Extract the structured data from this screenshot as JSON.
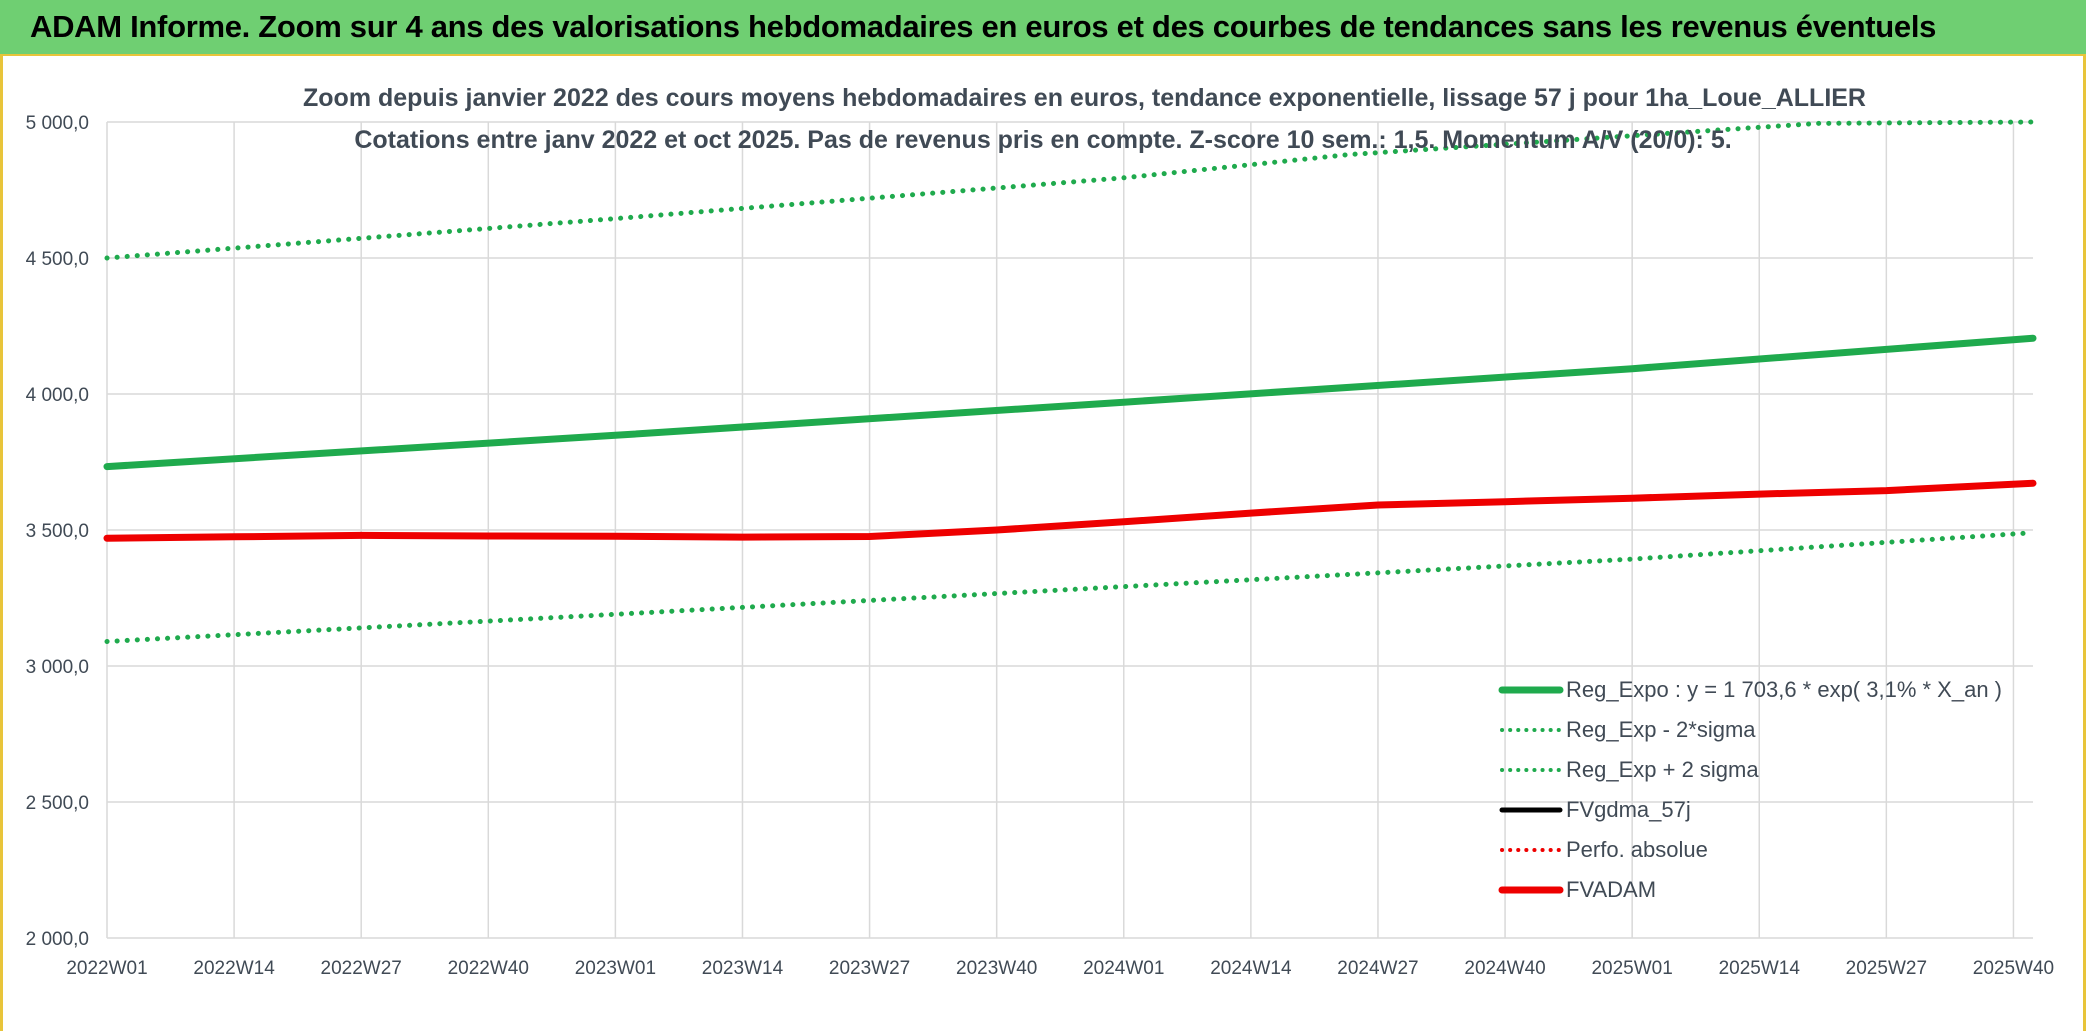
{
  "banner": {
    "title": "ADAM Informe. Zoom sur 4 ans des valorisations hebdomadaires en euros et des courbes de tendances sans les revenus éventuels"
  },
  "colors": {
    "banner_bg": "#6fcf72",
    "trend_green": "#1faa4d",
    "adam_red": "#ee0000",
    "black": "#000000",
    "grid": "#d9d9d9",
    "axis_text": "#404a55"
  },
  "chart_data": {
    "type": "line",
    "title_line1": "Zoom depuis janvier 2022 des cours moyens hebdomadaires en euros, tendance exponentielle, lissage 57 j pour 1ha_Loue_ALLIER",
    "title_line2": "Cotations entre janv 2022 et oct 2025. Pas de revenus pris en compte. Z-score 10 sem.: 1,5. Momentum A/V (20/0): 5.",
    "x_tick_labels": [
      "2022W01",
      "2022W14",
      "2022W27",
      "2022W40",
      "2023W01",
      "2023W14",
      "2023W27",
      "2023W40",
      "2024W01",
      "2024W14",
      "2024W27",
      "2024W40",
      "2025W01",
      "2025W14",
      "2025W27",
      "2025W40"
    ],
    "y_tick_labels": [
      "2 000,0",
      "2 500,0",
      "3 000,0",
      "3 500,0",
      "4 000,0",
      "4 500,0",
      "5 000,0"
    ],
    "ylim": [
      2000,
      5000
    ],
    "grid": true,
    "legend_position": "bottom-right",
    "series": [
      {
        "name": "Reg_Expo : y = 1 703,6 * exp( 3,1% *  X_an )",
        "style": "solid-thick",
        "color": "#1faa4d",
        "points": [
          [
            "2022W01",
            3733
          ],
          [
            "2023W01",
            3848
          ],
          [
            "2024W01",
            3970
          ],
          [
            "2025W01",
            4093
          ],
          [
            "2025W42",
            4205
          ]
        ]
      },
      {
        "name": "Reg_Exp - 2*sigma",
        "style": "dotted",
        "color": "#1faa4d",
        "points": [
          [
            "2022W01",
            3090
          ],
          [
            "2023W01",
            3190
          ],
          [
            "2024W01",
            3292
          ],
          [
            "2025W01",
            3393
          ],
          [
            "2025W42",
            3490
          ]
        ]
      },
      {
        "name": "Reg_Exp + 2 sigma",
        "style": "dotted",
        "color": "#1faa4d",
        "points": [
          [
            "2022W01",
            4500
          ],
          [
            "2023W01",
            4645
          ],
          [
            "2024W01",
            4795
          ],
          [
            "2024W24",
            4880
          ],
          [
            "2025W20",
            4995
          ],
          [
            "2025W42",
            5000
          ]
        ]
      },
      {
        "name": "FVgdma_57j",
        "style": "solid",
        "color": "#000000",
        "points": [
          [
            "2022W01",
            3470
          ],
          [
            "2022W14",
            3475
          ],
          [
            "2022W27",
            3480
          ],
          [
            "2022W40",
            3478
          ],
          [
            "2023W01",
            3477
          ],
          [
            "2023W14",
            3474
          ],
          [
            "2023W27",
            3476
          ],
          [
            "2023W40",
            3500
          ],
          [
            "2024W01",
            3530
          ],
          [
            "2024W14",
            3562
          ],
          [
            "2024W27",
            3592
          ],
          [
            "2024W40",
            3604
          ],
          [
            "2025W01",
            3617
          ],
          [
            "2025W14",
            3632
          ],
          [
            "2025W27",
            3645
          ],
          [
            "2025W42",
            3672
          ]
        ]
      },
      {
        "name": "Perfo. absolue",
        "style": "dotted",
        "color": "#ee0000",
        "points": []
      },
      {
        "name": "FVADAM",
        "style": "solid-thick",
        "color": "#ee0000",
        "points": [
          [
            "2022W01",
            3470
          ],
          [
            "2022W14",
            3475
          ],
          [
            "2022W27",
            3480
          ],
          [
            "2022W40",
            3478
          ],
          [
            "2023W01",
            3477
          ],
          [
            "2023W14",
            3474
          ],
          [
            "2023W27",
            3476
          ],
          [
            "2023W40",
            3500
          ],
          [
            "2024W01",
            3530
          ],
          [
            "2024W14",
            3562
          ],
          [
            "2024W27",
            3592
          ],
          [
            "2024W40",
            3604
          ],
          [
            "2025W01",
            3617
          ],
          [
            "2025W14",
            3632
          ],
          [
            "2025W27",
            3645
          ],
          [
            "2025W42",
            3672
          ]
        ]
      }
    ]
  }
}
